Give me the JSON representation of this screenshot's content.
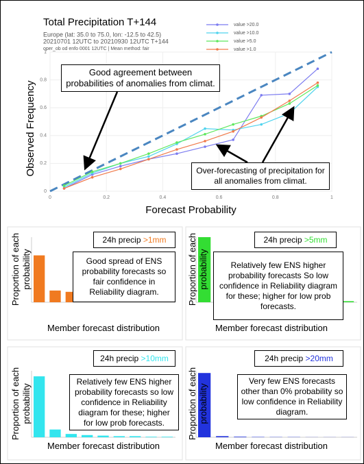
{
  "chart_data": [
    {
      "type": "line",
      "title": "Total Precipitation T+144",
      "subtitle": [
        "Europe (lat: 35.0 to 75.0, lon: -12.5 to 42.5)",
        "20210701 12UTC to 20210930 12UTC T+144",
        "oper_ob od enfo 0001 12UTC | Mean method: fair"
      ],
      "x_label": "Forecast Probability",
      "y_label": "Observed Frequency",
      "x": [
        0.05,
        0.15,
        0.25,
        0.35,
        0.45,
        0.55,
        0.65,
        0.75,
        0.85,
        0.95
      ],
      "series": [
        {
          "name": "value >20.0",
          "color": "#7b7bf0",
          "values": [
            0.02,
            0.12,
            0.18,
            0.23,
            0.27,
            0.32,
            0.37,
            0.69,
            0.7,
            0.88
          ]
        },
        {
          "name": "value >10.0",
          "color": "#4fd3ee",
          "values": [
            0.03,
            0.13,
            0.2,
            0.25,
            0.34,
            0.45,
            0.44,
            0.48,
            0.56,
            0.75
          ]
        },
        {
          "name": "value >5.0",
          "color": "#5ee85e",
          "values": [
            0.04,
            0.14,
            0.2,
            0.27,
            0.35,
            0.41,
            0.48,
            0.54,
            0.63,
            0.76
          ]
        },
        {
          "name": "value >1.0",
          "color": "#f07a4a",
          "values": [
            0.02,
            0.1,
            0.16,
            0.23,
            0.3,
            0.36,
            0.43,
            0.53,
            0.65,
            0.78
          ]
        }
      ],
      "xlim": [
        0,
        1
      ],
      "ylim": [
        0,
        1
      ],
      "xticks": [
        0,
        0.2,
        0.4,
        0.6,
        0.8,
        1
      ],
      "yticks": [
        0,
        0.2,
        0.4,
        0.6,
        0.8,
        1
      ],
      "grid": true,
      "legend": "upper right",
      "annotations": [
        "Good agreement between probabilities of anomalies from climat.",
        "Over-forecasting of precipitation for all anomalies from climat."
      ]
    },
    {
      "type": "bar",
      "title": "24h precip",
      "threshold": ">1mm",
      "color": "#f07a20",
      "y_label": "Proportion of each probability",
      "x_label": "Member forecast distribution",
      "values": [
        0.36,
        0.09,
        0.08,
        0.075,
        0.07,
        0.065,
        0.06,
        0.055,
        0.05
      ],
      "ylim": [
        0,
        0.5
      ],
      "annotation": "Good spread of ENS probability forecasts so fair confidence in Reliability diagram."
    },
    {
      "type": "bar",
      "title": "24h precip",
      "threshold": ">5mm",
      "color": "#33dd33",
      "y_label": "Proportion of each probability",
      "x_label": "Member forecast distribution",
      "values": [
        0.6,
        0.1,
        0.07,
        0.05,
        0.04,
        0.03,
        0.02,
        0.02,
        0.01
      ],
      "ylim": [
        0,
        0.6
      ],
      "annotation": "Relatively few ENS higher probability forecasts So low confidence in Reliability diagram for these; higher for low prob forecasts."
    },
    {
      "type": "bar",
      "title": "24h precip",
      "threshold": ">10mm",
      "color": "#33e5ee",
      "y_label": "Proportion of each probability",
      "x_label": "Member forecast distribution",
      "values": [
        0.55,
        0.07,
        0.03,
        0.02,
        0.015,
        0.01,
        0.01,
        0.005,
        0.005
      ],
      "ylim": [
        0,
        0.6
      ],
      "annotation": "Relatively few ENS higher probability forecasts so low confidence in Reliability diagram for these; higher for low prob forecasts."
    },
    {
      "type": "bar",
      "title": "24h precip",
      "threshold": ">20mm",
      "color": "#2233dd",
      "y_label": "Proportion of each probability",
      "x_label": "Member forecast distribution",
      "values": [
        0.58,
        0.01,
        0.005,
        0.003,
        0.002,
        0.002,
        0.001,
        0.001,
        0.001
      ],
      "ylim": [
        0,
        0.6
      ],
      "annotation": "Very few ENS forecasts other than 0% probability so low confidence in Reliability diagram."
    }
  ]
}
